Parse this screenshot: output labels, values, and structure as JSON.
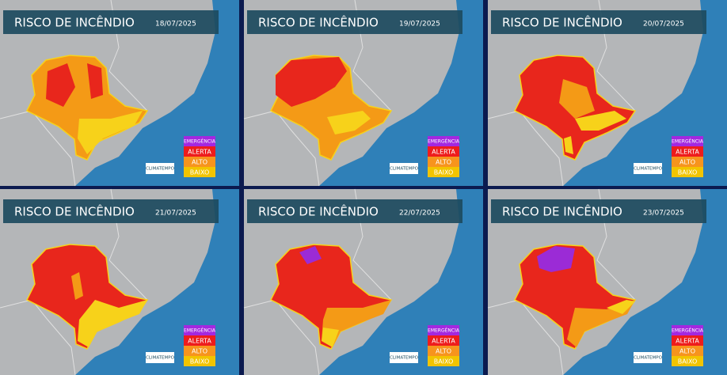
{
  "panels": [
    {
      "title": "RISCO DE INCÊNDIO",
      "date": "18/07/2025",
      "legend": [
        "EMERGÊNCIA",
        "ALERTA",
        "ALTO",
        "BAIXO"
      ],
      "logo": "CLIMATEMPO"
    },
    {
      "title": "RISCO DE INCÊNDIO",
      "date": "19/07/2025",
      "legend": [
        "EMERGÊNCIA",
        "ALERTA",
        "ALTO",
        "BAIXO"
      ],
      "logo": "CLIMATEMPO"
    },
    {
      "title": "RISCO DE INCÊNDIO",
      "date": "20/07/2025",
      "legend": [
        "EMERGÊNCIA",
        "ALERTA",
        "ALTO",
        "BAIXO"
      ],
      "logo": "CLIMATEMPO"
    },
    {
      "title": "RISCO DE INCÊNDIO",
      "date": "21/07/2025",
      "legend": [
        "EMERGÊNCIA",
        "ALERTA",
        "ALTO",
        "BAIXO"
      ],
      "logo": "CLIMATEMPO"
    },
    {
      "title": "RISCO DE INCÊNDIO",
      "date": "22/07/2025",
      "legend": [
        "EMERGÊNCIA",
        "ALERTA",
        "ALTO",
        "BAIXO"
      ],
      "logo": "CLIMATEMPO"
    },
    {
      "title": "RISCO DE INCÊNDIO",
      "date": "23/07/2025",
      "legend": [
        "EMERGÊNCIA",
        "ALERTA",
        "ALTO",
        "BAIXO"
      ],
      "logo": "CLIMATEMPO"
    }
  ]
}
